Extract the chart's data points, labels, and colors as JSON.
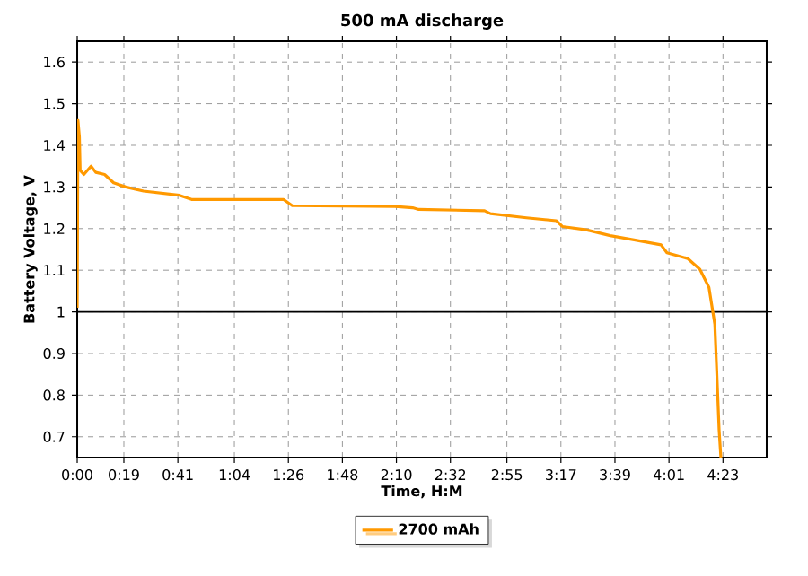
{
  "chart_data": {
    "type": "line",
    "title": "500 mA discharge",
    "xlabel": "Time, H:M",
    "ylabel": "Battery Voltage, V",
    "xlim": [
      0,
      4.68
    ],
    "ylim": [
      0.65,
      1.65
    ],
    "xticks": [
      {
        "value": 0,
        "label": "0:00"
      },
      {
        "value": 0.3167,
        "label": "0:19"
      },
      {
        "value": 0.6833,
        "label": "0:41"
      },
      {
        "value": 1.0667,
        "label": "1:04"
      },
      {
        "value": 1.4333,
        "label": "1:26"
      },
      {
        "value": 1.8,
        "label": "1:48"
      },
      {
        "value": 2.1667,
        "label": "2:10"
      },
      {
        "value": 2.5333,
        "label": "2:32"
      },
      {
        "value": 2.9167,
        "label": "2:55"
      },
      {
        "value": 3.2833,
        "label": "3:17"
      },
      {
        "value": 3.65,
        "label": "3:39"
      },
      {
        "value": 4.0167,
        "label": "4:01"
      },
      {
        "value": 4.3833,
        "label": "4:23"
      }
    ],
    "yticks": [
      0.7,
      0.8,
      0.9,
      1,
      1.1,
      1.2,
      1.3,
      1.4,
      1.5,
      1.6
    ],
    "grid": true,
    "legend": "bottom",
    "line_style": "solid",
    "marker": "none",
    "ref_lines": [
      {
        "axis": "y",
        "value": 1,
        "color": "#000000"
      }
    ],
    "series": [
      {
        "name": "2700 mAh",
        "color": "#ff9900",
        "x": [
          0,
          0.005,
          0.015,
          0.02,
          0.045,
          0.094,
          0.126,
          0.186,
          0.247,
          0.329,
          0.45,
          0.694,
          0.776,
          1.4,
          1.46,
          2.156,
          2.277,
          2.318,
          2.765,
          2.805,
          3.049,
          3.252,
          3.293,
          3.455,
          3.618,
          3.78,
          3.963,
          4.003,
          4.145,
          4.227,
          4.288,
          4.328,
          4.357,
          4.369
        ],
        "values": [
          1.01,
          1.46,
          1.42,
          1.34,
          1.33,
          1.35,
          1.335,
          1.33,
          1.31,
          1.3,
          1.29,
          1.28,
          1.27,
          1.27,
          1.255,
          1.253,
          1.25,
          1.246,
          1.243,
          1.236,
          1.226,
          1.219,
          1.205,
          1.197,
          1.183,
          1.173,
          1.161,
          1.142,
          1.128,
          1.102,
          1.059,
          0.97,
          0.717,
          0.65
        ]
      }
    ]
  }
}
